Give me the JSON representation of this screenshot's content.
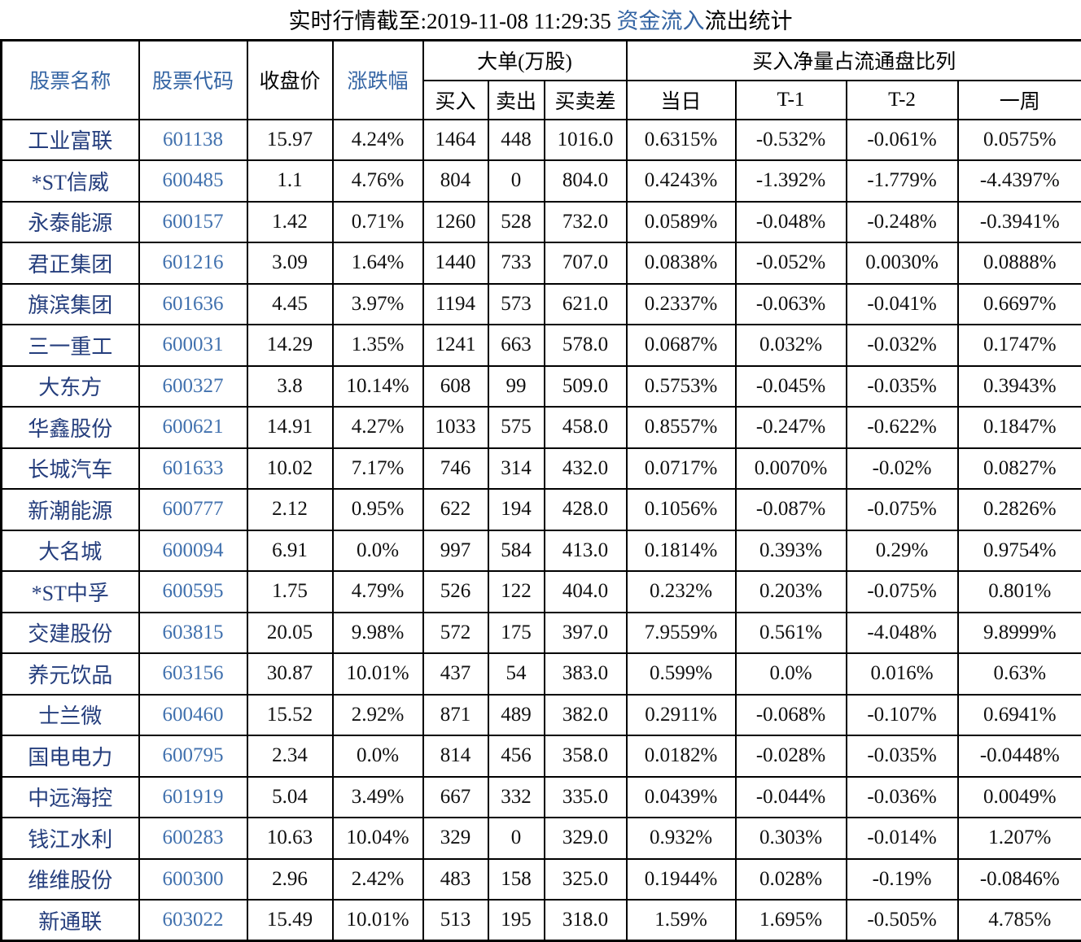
{
  "title": {
    "prefix": "实时行情截至:2019-11-08 11:29:35 ",
    "highlight": "资金流入",
    "suffix": "流出统计"
  },
  "colors": {
    "title_highlight": "#3565A4",
    "header_blue": "#3565A4",
    "stock_name_navy": "#253E7D",
    "stock_code_blue": "#4171AE",
    "border": "#000000"
  },
  "table": {
    "headers": {
      "stock_name": "股票名称",
      "stock_code": "股票代码",
      "close_price": "收盘价",
      "change_pct": "涨跌幅",
      "large_order_group": "大单(万股)",
      "buy": "买入",
      "sell": "卖出",
      "buy_sell_diff": "买卖差",
      "net_buy_group": "买入净量占流通盘比列",
      "today": "当日",
      "t1": "T-1",
      "t2": "T-2",
      "week": "一周"
    },
    "rows": [
      {
        "name": "工业富联",
        "code": "601138",
        "close": "15.97",
        "change": "4.24%",
        "buy": "1464",
        "sell": "448",
        "diff": "1016.0",
        "today": "0.6315%",
        "t1": "-0.532%",
        "t2": "-0.061%",
        "week": "0.0575%"
      },
      {
        "name": "*ST信威",
        "code": "600485",
        "close": "1.1",
        "change": "4.76%",
        "buy": "804",
        "sell": "0",
        "diff": "804.0",
        "today": "0.4243%",
        "t1": "-1.392%",
        "t2": "-1.779%",
        "week": "-4.4397%"
      },
      {
        "name": "永泰能源",
        "code": "600157",
        "close": "1.42",
        "change": "0.71%",
        "buy": "1260",
        "sell": "528",
        "diff": "732.0",
        "today": "0.0589%",
        "t1": "-0.048%",
        "t2": "-0.248%",
        "week": "-0.3941%"
      },
      {
        "name": "君正集团",
        "code": "601216",
        "close": "3.09",
        "change": "1.64%",
        "buy": "1440",
        "sell": "733",
        "diff": "707.0",
        "today": "0.0838%",
        "t1": "-0.052%",
        "t2": "0.0030%",
        "week": "0.0888%"
      },
      {
        "name": "旗滨集团",
        "code": "601636",
        "close": "4.45",
        "change": "3.97%",
        "buy": "1194",
        "sell": "573",
        "diff": "621.0",
        "today": "0.2337%",
        "t1": "-0.063%",
        "t2": "-0.041%",
        "week": "0.6697%"
      },
      {
        "name": "三一重工",
        "code": "600031",
        "close": "14.29",
        "change": "1.35%",
        "buy": "1241",
        "sell": "663",
        "diff": "578.0",
        "today": "0.0687%",
        "t1": "0.032%",
        "t2": "-0.032%",
        "week": "0.1747%"
      },
      {
        "name": "大东方",
        "code": "600327",
        "close": "3.8",
        "change": "10.14%",
        "buy": "608",
        "sell": "99",
        "diff": "509.0",
        "today": "0.5753%",
        "t1": "-0.045%",
        "t2": "-0.035%",
        "week": "0.3943%"
      },
      {
        "name": "华鑫股份",
        "code": "600621",
        "close": "14.91",
        "change": "4.27%",
        "buy": "1033",
        "sell": "575",
        "diff": "458.0",
        "today": "0.8557%",
        "t1": "-0.247%",
        "t2": "-0.622%",
        "week": "0.1847%"
      },
      {
        "name": "长城汽车",
        "code": "601633",
        "close": "10.02",
        "change": "7.17%",
        "buy": "746",
        "sell": "314",
        "diff": "432.0",
        "today": "0.0717%",
        "t1": "0.0070%",
        "t2": "-0.02%",
        "week": "0.0827%"
      },
      {
        "name": "新潮能源",
        "code": "600777",
        "close": "2.12",
        "change": "0.95%",
        "buy": "622",
        "sell": "194",
        "diff": "428.0",
        "today": "0.1056%",
        "t1": "-0.087%",
        "t2": "-0.075%",
        "week": "0.2826%"
      },
      {
        "name": "大名城",
        "code": "600094",
        "close": "6.91",
        "change": "0.0%",
        "buy": "997",
        "sell": "584",
        "diff": "413.0",
        "today": "0.1814%",
        "t1": "0.393%",
        "t2": "0.29%",
        "week": "0.9754%"
      },
      {
        "name": "*ST中孚",
        "code": "600595",
        "close": "1.75",
        "change": "4.79%",
        "buy": "526",
        "sell": "122",
        "diff": "404.0",
        "today": "0.232%",
        "t1": "0.203%",
        "t2": "-0.075%",
        "week": "0.801%"
      },
      {
        "name": "交建股份",
        "code": "603815",
        "close": "20.05",
        "change": "9.98%",
        "buy": "572",
        "sell": "175",
        "diff": "397.0",
        "today": "7.9559%",
        "t1": "0.561%",
        "t2": "-4.048%",
        "week": "9.8999%"
      },
      {
        "name": "养元饮品",
        "code": "603156",
        "close": "30.87",
        "change": "10.01%",
        "buy": "437",
        "sell": "54",
        "diff": "383.0",
        "today": "0.599%",
        "t1": "0.0%",
        "t2": "0.016%",
        "week": "0.63%"
      },
      {
        "name": "士兰微",
        "code": "600460",
        "close": "15.52",
        "change": "2.92%",
        "buy": "871",
        "sell": "489",
        "diff": "382.0",
        "today": "0.2911%",
        "t1": "-0.068%",
        "t2": "-0.107%",
        "week": "0.6941%"
      },
      {
        "name": "国电电力",
        "code": "600795",
        "close": "2.34",
        "change": "0.0%",
        "buy": "814",
        "sell": "456",
        "diff": "358.0",
        "today": "0.0182%",
        "t1": "-0.028%",
        "t2": "-0.035%",
        "week": "-0.0448%"
      },
      {
        "name": "中远海控",
        "code": "601919",
        "close": "5.04",
        "change": "3.49%",
        "buy": "667",
        "sell": "332",
        "diff": "335.0",
        "today": "0.0439%",
        "t1": "-0.044%",
        "t2": "-0.036%",
        "week": "0.0049%"
      },
      {
        "name": "钱江水利",
        "code": "600283",
        "close": "10.63",
        "change": "10.04%",
        "buy": "329",
        "sell": "0",
        "diff": "329.0",
        "today": "0.932%",
        "t1": "0.303%",
        "t2": "-0.014%",
        "week": "1.207%"
      },
      {
        "name": "维维股份",
        "code": "600300",
        "close": "2.96",
        "change": "2.42%",
        "buy": "483",
        "sell": "158",
        "diff": "325.0",
        "today": "0.1944%",
        "t1": "0.028%",
        "t2": "-0.19%",
        "week": "-0.0846%"
      },
      {
        "name": "新通联",
        "code": "603022",
        "close": "15.49",
        "change": "10.01%",
        "buy": "513",
        "sell": "195",
        "diff": "318.0",
        "today": "1.59%",
        "t1": "1.695%",
        "t2": "-0.505%",
        "week": "4.785%"
      }
    ]
  }
}
